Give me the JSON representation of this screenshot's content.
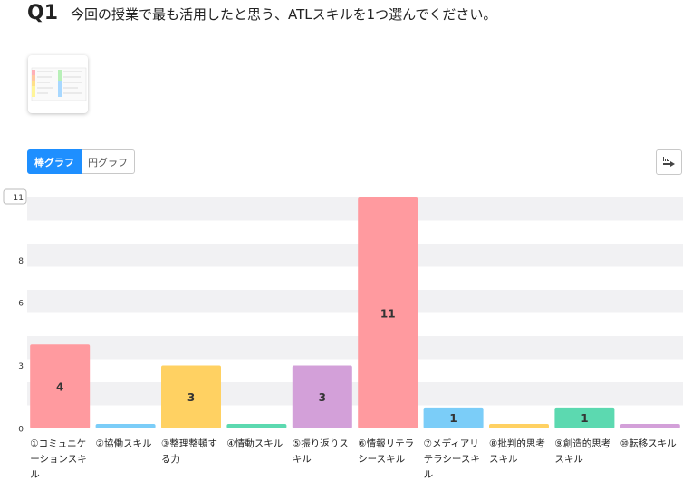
{
  "question": {
    "number": "Q1",
    "text": "今回の授業で最も活用したと思う、ATLスキルを1つ選んでください。"
  },
  "toggle": {
    "bar_label": "棒グラフ",
    "pie_label": "円グラフ",
    "selected": "bar"
  },
  "chart_data": {
    "type": "bar",
    "categories": [
      "①コミュニケーションスキル",
      "②協働スキル",
      "③整理整頓する力",
      "④情動スキル",
      "⑤振り返りスキル",
      "⑥情報リテラシースキル",
      "⑦メディアリテラシースキル",
      "⑧批判的思考スキル",
      "⑨創造的思考スキル",
      "⑩転移スキル"
    ],
    "values": [
      4,
      0,
      3,
      0,
      3,
      11,
      1,
      0,
      1,
      0
    ],
    "colors": [
      "#ff9a9f",
      "#7bcdf8",
      "#ffd162",
      "#5cd9b0",
      "#d3a0d9",
      "#ff9a9f",
      "#7bcdf8",
      "#ffd162",
      "#5cd9b0",
      "#d3a0d9"
    ],
    "ytick_labels": [
      "0",
      "3",
      "6",
      "8",
      "11"
    ],
    "ymax_label": "11",
    "ylim": [
      0,
      11
    ],
    "band_colors": [
      "#f1f1f3",
      "#ffffff"
    ],
    "grid": true
  }
}
